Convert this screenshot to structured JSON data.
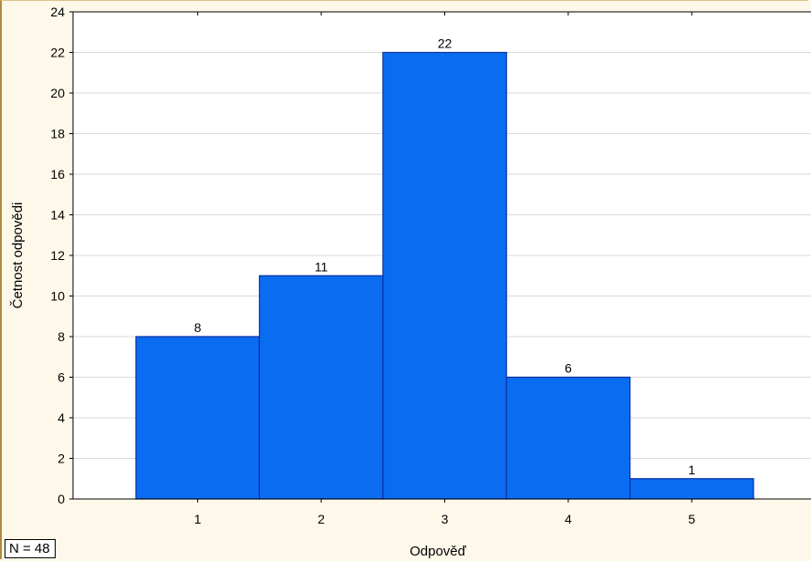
{
  "chart_data": {
    "type": "bar",
    "categories": [
      "1",
      "2",
      "3",
      "4",
      "5"
    ],
    "values": [
      8,
      11,
      22,
      6,
      1
    ],
    "data_labels": [
      "8",
      "11",
      "22",
      "6",
      "1"
    ],
    "xlabel": "Odpověď",
    "ylabel": "Četnost odpovědi",
    "ylim": [
      0,
      24
    ],
    "yticks": [
      0,
      2,
      4,
      6,
      8,
      10,
      12,
      14,
      16,
      18,
      20,
      22,
      24
    ],
    "grid": true,
    "bar_color": "#0a6cf0",
    "bar_edge_color": "#0a2fa3"
  },
  "annotation": {
    "n_label": "N = 48"
  }
}
